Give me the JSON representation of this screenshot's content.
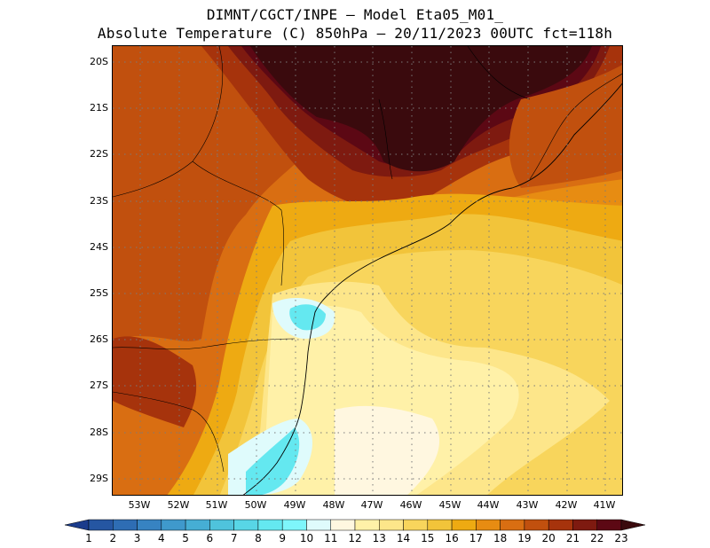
{
  "header": {
    "line1": "DIMNT/CGCT/INPE —  Model Eta05_M01_",
    "line2": "Absolute Temperature (C) 850hPa —  20/11/2023 00UTC fct=118h"
  },
  "axes": {
    "lat_labels": [
      "20S",
      "21S",
      "22S",
      "23S",
      "24S",
      "25S",
      "26S",
      "27S",
      "28S",
      "29S"
    ],
    "lon_labels": [
      "53W",
      "52W",
      "51W",
      "50W",
      "49W",
      "48W",
      "47W",
      "46W",
      "45W",
      "44W",
      "43W",
      "42W",
      "41W"
    ]
  },
  "colorbar": {
    "labels": [
      "1",
      "2",
      "3",
      "4",
      "5",
      "6",
      "7",
      "8",
      "9",
      "10",
      "11",
      "12",
      "13",
      "14",
      "15",
      "16",
      "17",
      "18",
      "19",
      "20",
      "21",
      "22",
      "23"
    ],
    "colors": [
      "#1b3c8c",
      "#2556a2",
      "#2e6db4",
      "#3783c2",
      "#3f99cc",
      "#46aed4",
      "#4fc3dc",
      "#58d6e6",
      "#64e8f0",
      "#7ef6fb",
      "#dffbfc",
      "#fff7e0",
      "#fff1a8",
      "#fde68a",
      "#f8d55c",
      "#f2c43a",
      "#eeaa12",
      "#e78c12",
      "#d96e12",
      "#c1500e",
      "#a6330c",
      "#7e1a10",
      "#5c0814",
      "#3a0a0d"
    ]
  },
  "map": {
    "colors": {
      "darkest": "#3a0a0d",
      "dark_red": "#5c0814",
      "maroon": "#7e1a10",
      "brick": "#a6330c",
      "rust": "#c1500e",
      "orange": "#d96e12",
      "orange_light": "#e78c12",
      "amber": "#eeaa12",
      "gold": "#f2c43a",
      "yellow": "#f8d55c",
      "pale_yellow": "#fde68a",
      "cream": "#fff1a8",
      "ivory": "#fff7e0",
      "ice": "#dffbfc",
      "cyan": "#64e8f0"
    }
  }
}
